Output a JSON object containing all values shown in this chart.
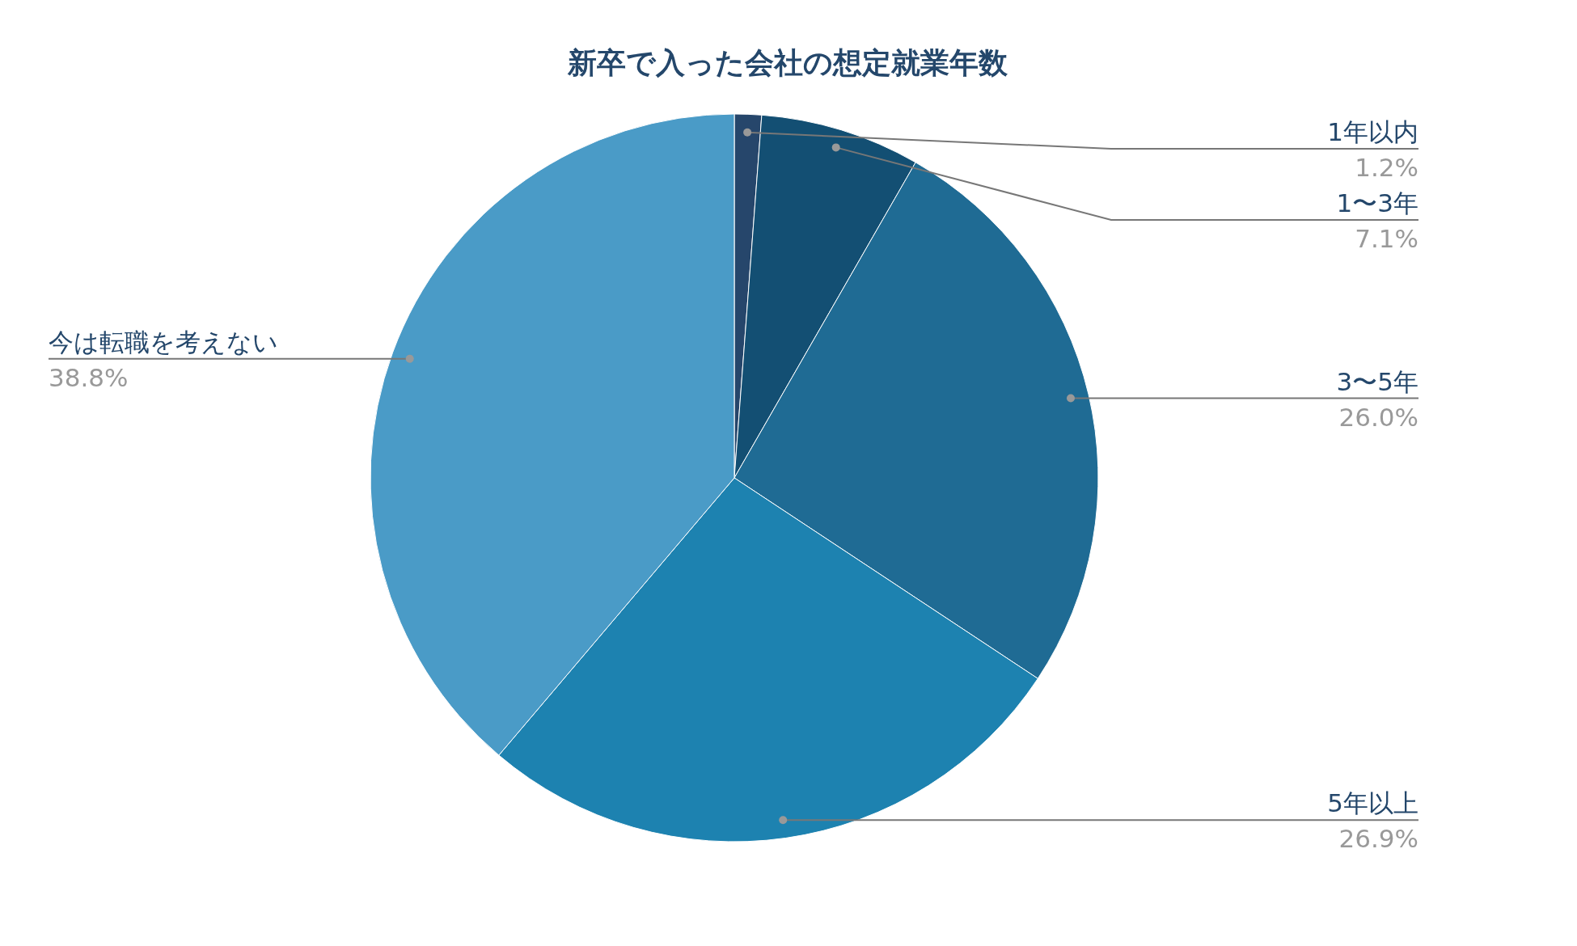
{
  "chart_data": {
    "type": "pie",
    "title": "新卒で入った会社の想定就業年数",
    "categories": [
      "1年以内",
      "1〜3年",
      "3〜5年",
      "5年以上",
      "今は転職を考えない"
    ],
    "values": [
      1.2,
      7.1,
      26.0,
      26.9,
      38.8
    ],
    "value_labels": [
      "1.2%",
      "7.1%",
      "26.0%",
      "26.9%",
      "38.8%"
    ],
    "colors": [
      "#26466b",
      "#134f73",
      "#1f6b94",
      "#1d82b0",
      "#4a9bc7"
    ]
  }
}
